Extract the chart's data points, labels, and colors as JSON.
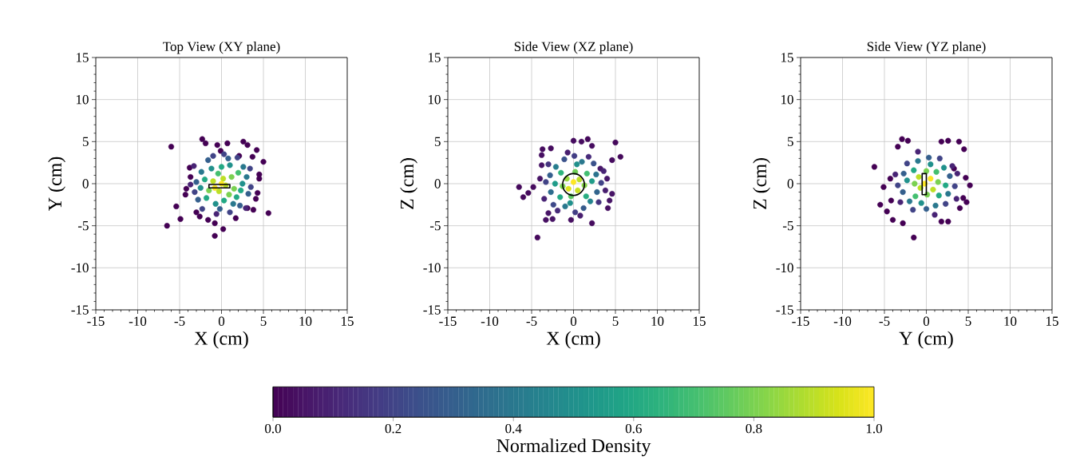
{
  "chart_data": [
    {
      "type": "scatter",
      "title": "Top View (XY plane)",
      "xlabel": "X (cm)",
      "ylabel": "Y (cm)",
      "xlim": [
        -15,
        15
      ],
      "ylim": [
        -15,
        15
      ],
      "xticks": [
        -15,
        -10,
        -5,
        0,
        5,
        10,
        15
      ],
      "yticks": [
        -15,
        -10,
        -5,
        0,
        5,
        10,
        15
      ],
      "grid": true,
      "marker": "circle",
      "series": [
        {
          "x": [
            -6.0,
            -6.5,
            -5.4,
            -4.9,
            -0.8,
            0.2,
            -0.8,
            -2.3,
            -1.9,
            -0.5,
            0.7,
            2.6,
            3.1,
            4.2,
            5.0,
            5.6,
            3.7,
            4.3,
            4.1,
            3.8,
            3.1,
            1.7,
            -1.6,
            -2.6,
            -3.0,
            -4.2,
            -4.3,
            -3.7,
            -3.8,
            4.5,
            4.5,
            -0.1,
            2.1,
            -0.8,
            -0.3,
            0.5,
            0.2,
            -1.0,
            1.2,
            1.5,
            -1.5,
            0.9,
            -0.4,
            2.0,
            1.8,
            -2.0,
            -1.8,
            0.3,
            0.0,
            -1.2,
            1.0,
            2.5,
            2.3,
            -2.5,
            -0.7,
            1.4,
            -2.4,
            2.6,
            3.0,
            -3.0,
            -2.8,
            -0.2,
            0.8,
            -1.6,
            2.2,
            3.2,
            -3.2,
            0.3,
            -1.0,
            1.9,
            3.4,
            -3.3,
            -2.3,
            1.0,
            -0.6,
            3.5,
            -3.7,
            2.9,
            0.0
          ],
          "values": [
            4.4,
            -5.0,
            -2.7,
            -4.2,
            -6.2,
            -5.4,
            -4.7,
            5.3,
            4.8,
            4.6,
            4.8,
            5.0,
            4.6,
            4.0,
            2.6,
            -3.5,
            3.2,
            -1.1,
            -1.8,
            -3.1,
            -2.9,
            -4.1,
            -4.3,
            -3.9,
            -3.4,
            -0.6,
            -1.3,
            0.8,
            1.9,
            1.1,
            0.6,
            3.9,
            3.3,
            -0.5,
            -0.9,
            -0.2,
            0.6,
            0.3,
            0.8,
            -0.6,
            -0.8,
            -1.3,
            1.2,
            1.3,
            -1.6,
            0.5,
            -1.7,
            -2.0,
            2.0,
            1.8,
            2.2,
            0.0,
            -0.8,
            -0.5,
            -2.4,
            -2.4,
            1.4,
            2.0,
            0.8,
            0.2,
            -1.9,
            -3.0,
            3.0,
            2.8,
            -2.6,
            -1.2,
            -1.0,
            3.5,
            3.3,
            3.1,
            1.8,
            2.1,
            -3.0,
            -3.4,
            -3.6,
            -0.4,
            -0.1,
            -2.9,
            0.0
          ],
          "colors": [
            "#440154",
            "#440154",
            "#440154",
            "#440154",
            "#440154",
            "#440154",
            "#440154",
            "#440154",
            "#440154",
            "#440154",
            "#440154",
            "#440154",
            "#440154",
            "#440154",
            "#440154",
            "#440154",
            "#440154",
            "#440154",
            "#440154",
            "#440154",
            "#440154",
            "#440154",
            "#440154",
            "#440154",
            "#440154",
            "#440154",
            "#440154",
            "#440154",
            "#440154",
            "#440154",
            "#440154",
            "#440154",
            "#440154",
            "#fde725",
            "#bddf26",
            "#bddf26",
            "#bddf26",
            "#bddf26",
            "#7ad151",
            "#7ad151",
            "#7ad151",
            "#7ad151",
            "#44bf70",
            "#44bf70",
            "#22a884",
            "#22a884",
            "#22a884",
            "#22a884",
            "#22a884",
            "#21918c",
            "#21918c",
            "#21918c",
            "#22a884",
            "#21918c",
            "#21918c",
            "#2a788e",
            "#2a788e",
            "#2a788e",
            "#2a788e",
            "#355f8d",
            "#355f8d",
            "#355f8d",
            "#355f8d",
            "#355f8d",
            "#355f8d",
            "#355f8d",
            "#414487",
            "#414487",
            "#414487",
            "#414487",
            "#414487",
            "#482475",
            "#414487",
            "#414487",
            "#482475",
            "#414487",
            "#482475",
            "#482475",
            "#fde725"
          ]
        }
      ]
    },
    {
      "type": "scatter",
      "title": "Side View (XZ plane)",
      "xlabel": "X (cm)",
      "ylabel": "Z (cm)",
      "xlim": [
        -15,
        15
      ],
      "ylim": [
        -15,
        15
      ],
      "xticks": [
        -15,
        -10,
        -5,
        0,
        5,
        10,
        15
      ],
      "yticks": [
        -15,
        -10,
        -5,
        0,
        5,
        10,
        15
      ],
      "grid": true,
      "marker": "circle",
      "clabel": "Normalized Density",
      "clim": [
        0,
        1
      ],
      "cticks": [
        {
          "value": 0,
          "label": "0.0"
        },
        {
          "value": 0.2,
          "label": "0.2"
        },
        {
          "value": 0.4,
          "label": "0.4"
        },
        {
          "value": 0.6,
          "label": "0.6"
        },
        {
          "value": 0.8,
          "label": "0.8"
        },
        {
          "value": 1,
          "label": "1.0"
        }
      ],
      "series": [
        {
          "x": [
            -6.5,
            -5.4,
            -6.0,
            -4.8,
            -4.3,
            5.0,
            5.6,
            4.6,
            0.0,
            0.95,
            1.7,
            2.2,
            -3.7,
            -3.8,
            -2.7,
            4.1,
            4.3,
            4.6,
            2.2,
            -0.3,
            -3.3,
            -2.5,
            -3.0,
            -4.0,
            -3.8,
            4.0,
            3.2,
            0.0,
            -0.6,
            0.5,
            0.7,
            -0.8,
            1.3,
            -1.3,
            0.2,
            -0.3,
            1.6,
            -1.5,
            1.5,
            -1.6,
            2.2,
            -2.2,
            0.4,
            -0.4,
            2.0,
            -2.1,
            1.0,
            -1.0,
            2.7,
            -2.7,
            2.8,
            -2.8,
            1.2,
            -1.1,
            2.4,
            -2.4,
            3.3,
            -3.3,
            0.1,
            0.2,
            3.0,
            -3.0,
            1.8,
            -1.9,
            3.6,
            -3.5,
            0.8,
            -0.7,
            3.8
          ],
          "values": [
            -0.4,
            -1.1,
            -1.6,
            -0.4,
            -6.4,
            4.9,
            3.2,
            2.8,
            5.1,
            5.0,
            5.3,
            4.5,
            4.1,
            3.4,
            4.2,
            -2.9,
            -2.0,
            -1.2,
            -4.7,
            -4.3,
            -4.3,
            -4.2,
            -3.5,
            0.6,
            2.2,
            0.6,
            1.8,
            0.2,
            -0.6,
            -0.8,
            0.5,
            0.6,
            -0.2,
            -0.3,
            1.4,
            -1.5,
            1.2,
            1.3,
            -1.5,
            -1.6,
            0.3,
            0.0,
            2.3,
            -2.3,
            -2.1,
            2.0,
            2.6,
            -2.7,
            1.1,
            -1.0,
            -1.0,
            1.0,
            -2.9,
            2.9,
            2.4,
            -2.5,
            0.1,
            0.2,
            3.3,
            -3.4,
            -2.2,
            2.3,
            3.2,
            -3.2,
            1.5,
            -1.8,
            -3.8,
            3.7,
            -0.8
          ],
          "cvalues": [
            0.02,
            0.02,
            0.02,
            0.03,
            0.02,
            0.02,
            0.02,
            0.03,
            0.03,
            0.03,
            0.02,
            0.03,
            0.03,
            0.04,
            0.03,
            0.04,
            0.05,
            0.05,
            0.03,
            0.04,
            0.04,
            0.05,
            0.05,
            0.05,
            0.05,
            0.06,
            0.06,
            1.0,
            0.95,
            0.92,
            0.9,
            0.85,
            0.82,
            0.8,
            0.78,
            0.75,
            0.7,
            0.65,
            0.62,
            0.6,
            0.55,
            0.55,
            0.5,
            0.5,
            0.45,
            0.42,
            0.4,
            0.4,
            0.38,
            0.35,
            0.32,
            0.3,
            0.28,
            0.25,
            0.25,
            0.22,
            0.2,
            0.2,
            0.18,
            0.18,
            0.15,
            0.15,
            0.12,
            0.12,
            0.1,
            0.1,
            0.08,
            0.08,
            0.08
          ]
        }
      ]
    },
    {
      "type": "scatter",
      "title": "Side View (YZ plane)",
      "xlabel": "Y (cm)",
      "ylabel": "Z (cm)",
      "xlim": [
        -15,
        15
      ],
      "ylim": [
        -15,
        15
      ],
      "xticks": [
        -15,
        -10,
        -5,
        0,
        5,
        10,
        15
      ],
      "yticks": [
        -15,
        -10,
        -5,
        0,
        5,
        10,
        15
      ],
      "grid": true,
      "marker": "circle",
      "series": [
        {
          "x": [
            -6.2,
            -5.5,
            -4.7,
            -4.0,
            -2.8,
            -1.5,
            -2.9,
            -2.2,
            -3.4,
            1.8,
            2.6,
            3.9,
            4.5,
            4.7,
            5.2,
            4.4,
            4.8,
            4.0,
            2.6,
            1.8,
            -5.1,
            -4.3,
            3.3,
            -4.2,
            -0.2,
            0.5,
            -0.7,
            0.8,
            -0.9,
            0.1,
            1.4,
            -1.4,
            0.0,
            1.2,
            -1.3,
            1.5,
            -1.5,
            2.3,
            -2.3,
            0.5,
            -0.6,
            2.1,
            -2.0,
            1.1,
            -1.0,
            2.6,
            -2.7,
            2.8,
            -2.8,
            0.0,
            0.3,
            2.3,
            -2.3,
            3.4,
            -3.4,
            1.6,
            -1.6,
            3.1,
            -3.1,
            3.7,
            -3.7,
            1.0,
            -1.0,
            3.6
          ],
          "values": [
            2.0,
            -2.5,
            -3.3,
            -4.3,
            -4.7,
            -6.4,
            5.3,
            5.1,
            4.4,
            5.0,
            5.1,
            5.0,
            4.1,
            0.7,
            -0.2,
            -1.7,
            -2.2,
            -2.9,
            -4.5,
            -4.5,
            -0.4,
            0.6,
            1.8,
            -2.0,
            0.0,
            0.6,
            -0.5,
            -0.7,
            0.8,
            -1.3,
            0.2,
            0.0,
            1.5,
            1.4,
            -1.5,
            -1.4,
            1.6,
            -0.2,
            0.4,
            2.3,
            -2.3,
            1.9,
            -2.1,
            -2.6,
            2.7,
            -1.2,
            1.2,
            0.9,
            -1.0,
            -3.0,
            3.1,
            -2.4,
            2.4,
            -0.3,
            -0.2,
            3.0,
            -3.1,
            2.1,
            -2.2,
            1.2,
            1.1,
            -3.7,
            3.8,
            -1.8
          ],
          "colors": [
            "#440154",
            "#440154",
            "#440154",
            "#440154",
            "#440154",
            "#440154",
            "#440154",
            "#440154",
            "#440154",
            "#440154",
            "#440154",
            "#440154",
            "#440154",
            "#440154",
            "#440154",
            "#440154",
            "#440154",
            "#440154",
            "#440154",
            "#440154",
            "#440154",
            "#440154",
            "#440154",
            "#440154",
            "#fde725",
            "#fde725",
            "#bddf26",
            "#bddf26",
            "#bddf26",
            "#7ad151",
            "#7ad151",
            "#7ad151",
            "#7ad151",
            "#44bf70",
            "#44bf70",
            "#22a884",
            "#22a884",
            "#22a884",
            "#21918c",
            "#21918c",
            "#21918c",
            "#21918c",
            "#2a788e",
            "#2a788e",
            "#2a788e",
            "#2a788e",
            "#355f8d",
            "#355f8d",
            "#355f8d",
            "#355f8d",
            "#355f8d",
            "#414487",
            "#414487",
            "#414487",
            "#414487",
            "#414487",
            "#414487",
            "#482475",
            "#482475",
            "#482475",
            "#482475",
            "#482475",
            "#482475",
            "#482475"
          ]
        }
      ]
    }
  ]
}
